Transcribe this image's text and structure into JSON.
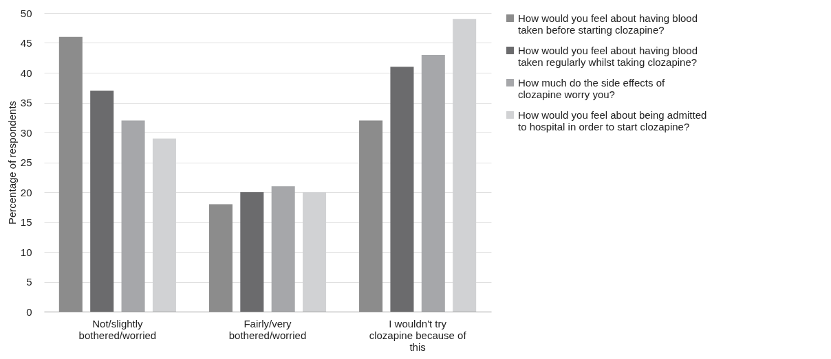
{
  "chart_data": {
    "type": "bar",
    "ylabel": "Percentage of respondents",
    "categories": [
      "Not/slightly bothered/worried",
      "Fairly/very bothered/worried",
      "I wouldn't try clozapine because of this"
    ],
    "series": [
      {
        "name": "How would you feel about having blood taken before starting clozapine?",
        "color": "#8c8c8c",
        "values": [
          46,
          18,
          32
        ]
      },
      {
        "name": "How would you feel about having blood taken regularly whilst taking clozapine?",
        "color": "#6b6b6d",
        "values": [
          37,
          20,
          41
        ]
      },
      {
        "name": "How much do the side effects of clozapine worry you?",
        "color": "#a6a7aa",
        "values": [
          32,
          21,
          43
        ]
      },
      {
        "name": "How would you feel about being admitted to hospital in order to start clozapine?",
        "color": "#d1d2d4",
        "values": [
          29,
          20,
          49
        ]
      }
    ],
    "ylim": [
      0,
      50
    ],
    "yticks": [
      0,
      5,
      10,
      15,
      20,
      25,
      30,
      35,
      40,
      45,
      50
    ],
    "grid": "y",
    "legend": "right"
  }
}
